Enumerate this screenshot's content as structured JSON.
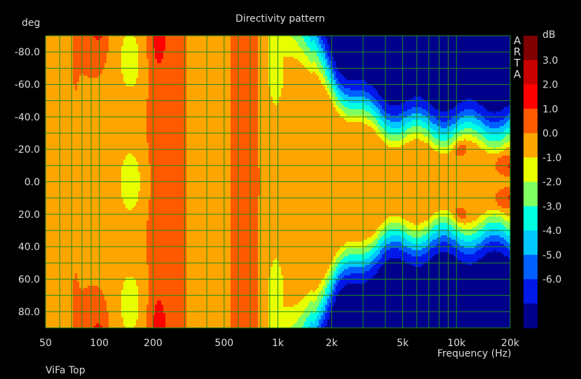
{
  "chart_data": {
    "type": "heatmap",
    "title": "Directivity pattern",
    "xlabel": "Frequency (Hz)",
    "ylabel": "deg",
    "x_scale": "log",
    "xlim": [
      50,
      20000
    ],
    "ylim": [
      90,
      -90
    ],
    "x_ticks": [
      50,
      100,
      200,
      500,
      1000,
      2000,
      5000,
      10000,
      20000
    ],
    "x_tick_labels": [
      "50",
      "100",
      "200",
      "500",
      "1k",
      "2k",
      "5k",
      "10k",
      "20k"
    ],
    "y_ticks": [
      -80,
      -60,
      -40,
      -20,
      0,
      20,
      40,
      60,
      80
    ],
    "y_tick_labels": [
      "-80.0",
      "-60.0",
      "-40.0",
      "-20.0",
      "0.0",
      "20.0",
      "40.0",
      "60.0",
      "80.0"
    ],
    "colorbar": {
      "unit": "dB",
      "levels": [
        3.0,
        2.0,
        1.0,
        0.0,
        -1.0,
        -2.0,
        -3.0,
        -4.0,
        -5.0,
        -6.0
      ],
      "level_labels": [
        "3.0",
        "2.0",
        "1.0",
        "0.0",
        "-1.0",
        "-2.0",
        "-3.0",
        "-4.0",
        "-5.0",
        "-6.0"
      ],
      "band_colors": [
        "#7f0000",
        "#c80000",
        "#ff0000",
        "#ff5a00",
        "#ffa500",
        "#e8ff00",
        "#80ff60",
        "#00ffe0",
        "#00c8ff",
        "#0060ff",
        "#0018e8",
        "#00008b"
      ]
    },
    "contour_bands_dB": [
      3.5,
      2.5,
      1.5,
      0.5,
      -0.5,
      -1.5,
      -2.5,
      -3.5,
      -4.5,
      -5.5,
      -7
    ],
    "grid": true
  },
  "brand_label": "ARTA",
  "footer_label": "ViFa Top",
  "colors": {
    "background": "#000000",
    "grid": "#1f8a1f",
    "text": "#dcdcdc"
  }
}
